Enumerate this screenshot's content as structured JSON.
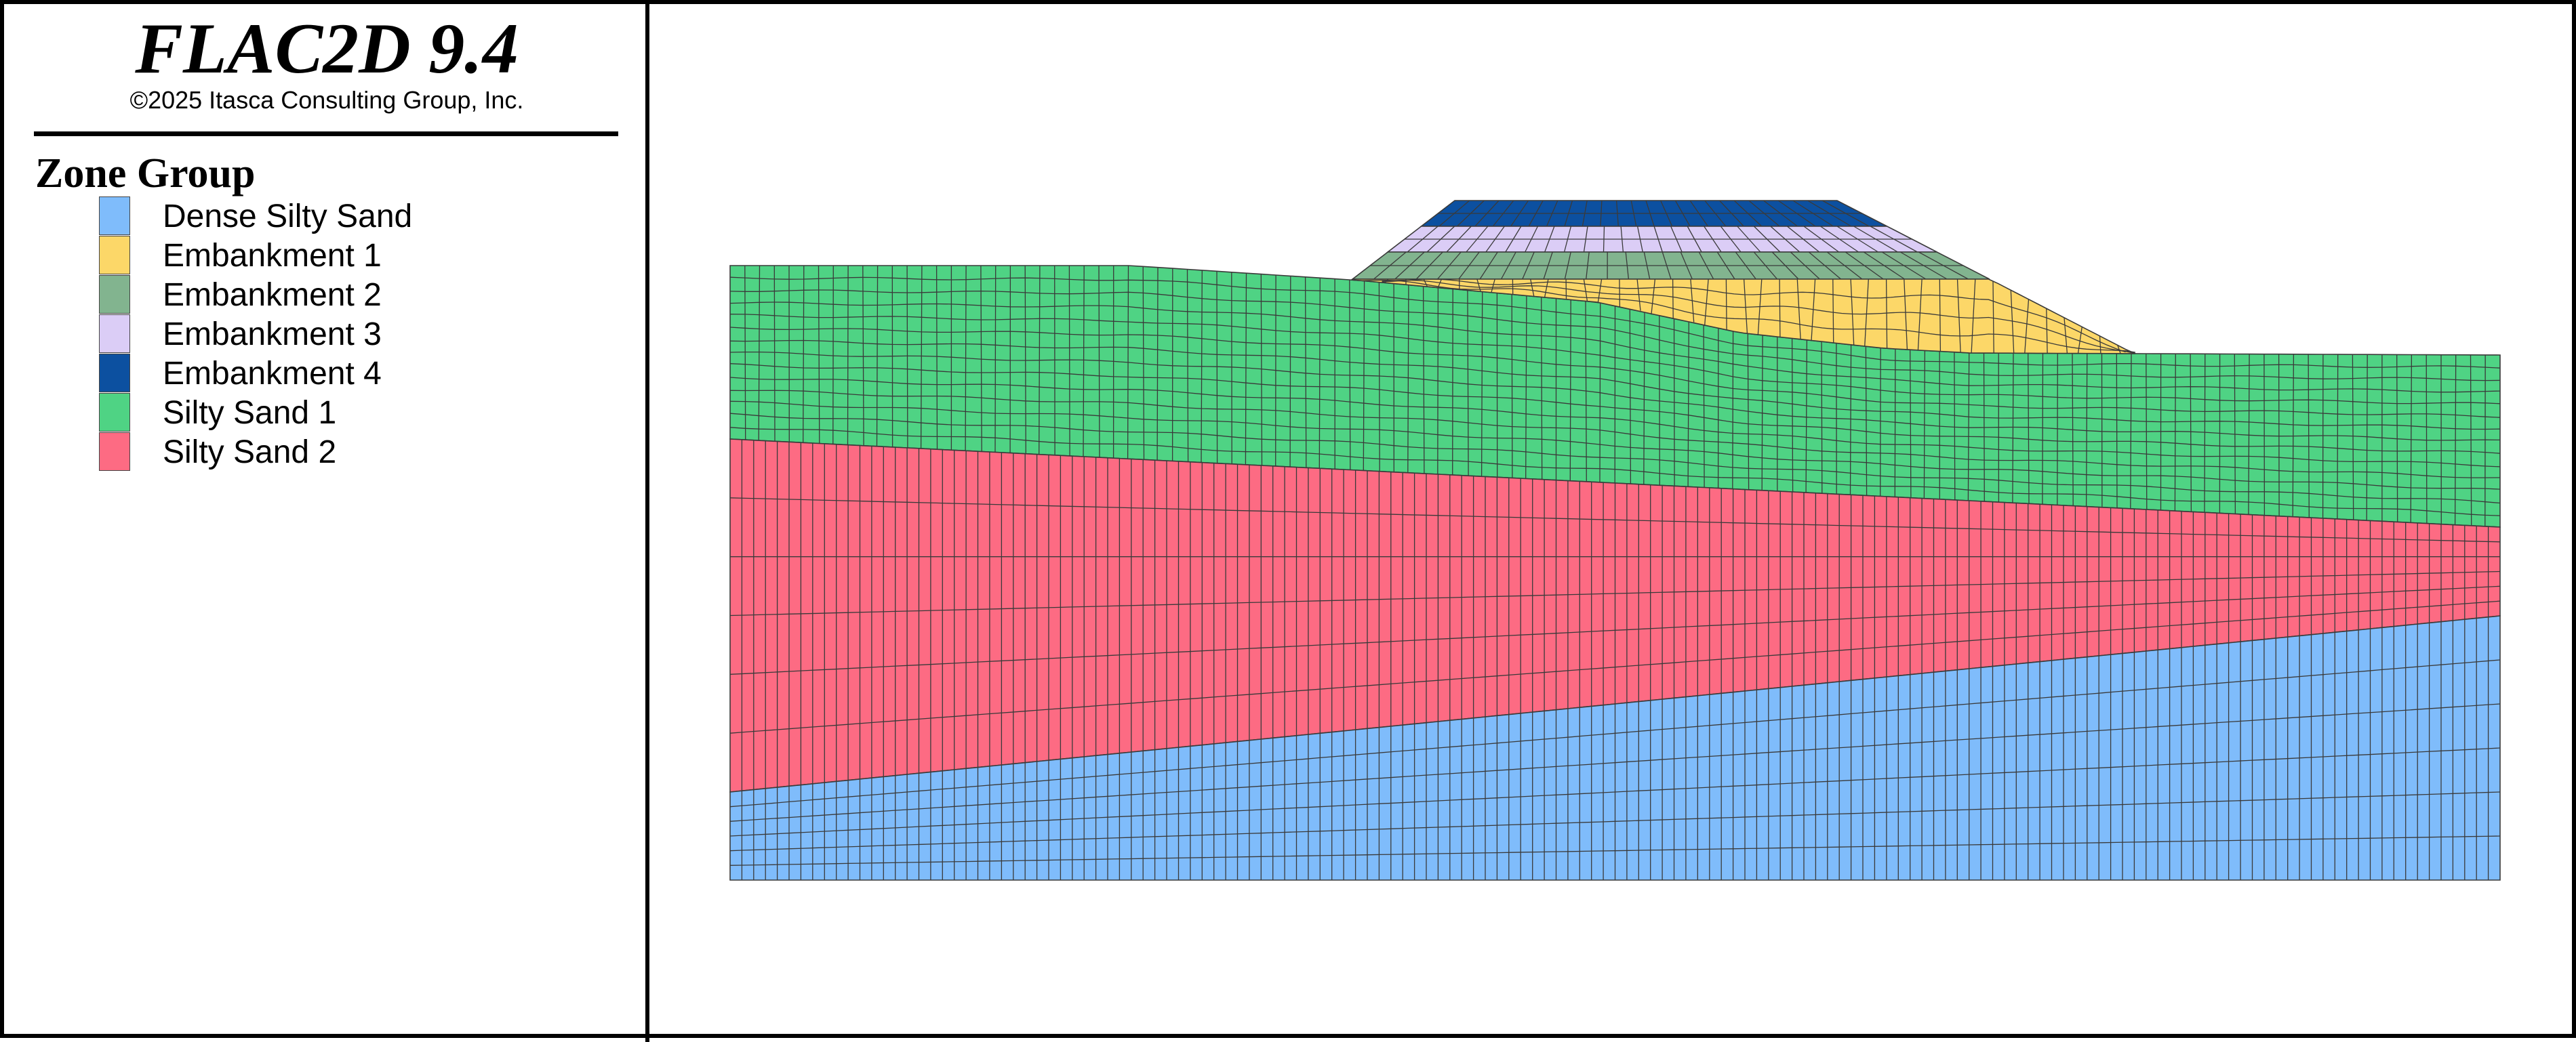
{
  "app": {
    "title": "FLAC2D 9.4",
    "copyright": "©2025 Itasca Consulting Group, Inc."
  },
  "legend": {
    "heading": "Zone Group",
    "items": [
      {
        "label": "Dense Silty Sand",
        "color": "#7fbcfb"
      },
      {
        "label": "Embankment 1",
        "color": "#fcd768"
      },
      {
        "label": "Embankment 2",
        "color": "#82b48f"
      },
      {
        "label": "Embankment 3",
        "color": "#dbcdf6"
      },
      {
        "label": "Embankment 4",
        "color": "#0c50a0"
      },
      {
        "label": "Silty Sand 1",
        "color": "#4fd384"
      },
      {
        "label": "Silty Sand 2",
        "color": "#fd6b83"
      }
    ]
  },
  "mesh": {
    "line_color": "#3a3a3a",
    "zone_groups": [
      "Silty Sand 1",
      "Silty Sand 2",
      "Dense Silty Sand",
      "Embankment 1",
      "Embankment 2",
      "Embankment 3",
      "Embankment 4"
    ]
  }
}
